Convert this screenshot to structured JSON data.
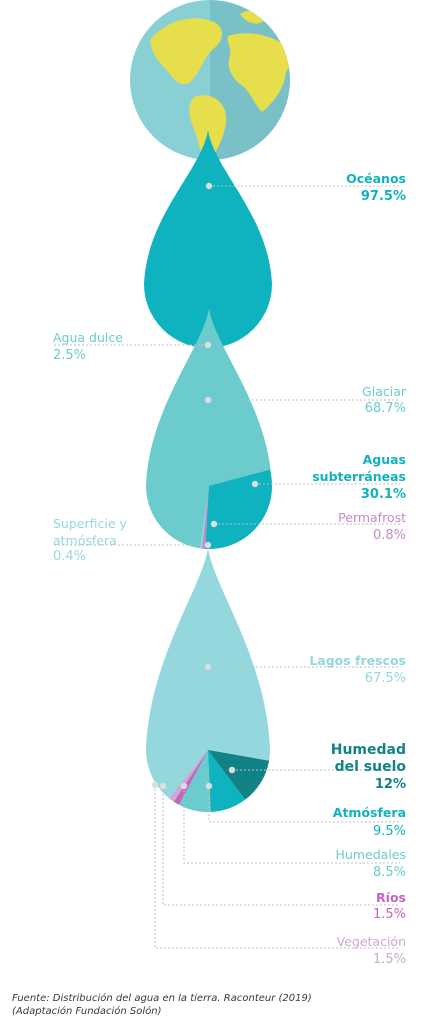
{
  "colors": {
    "ocean_drop": "#0fb2bf",
    "fresh_drop": "#6ccbcc",
    "lake_drop": "#94d8de",
    "groundwater": "#0fb2bf",
    "permafrost": "#c58ac9",
    "soil": "#128287",
    "atmosphere": "#0fb2bf",
    "wetlands": "#6ccbcc",
    "rivers": "#c266c2",
    "vegetation": "#d2a7d6",
    "leader": "#bfbfbf",
    "earth_water": "#89d0d5",
    "earth_land": "#e7de4b"
  },
  "chart_data": [
    {
      "type": "pie",
      "shape": "drop",
      "slices": [
        {
          "label": "Océanos",
          "value": 97.5,
          "value_text": "97.5%"
        },
        {
          "label": "Agua dulce",
          "value": 2.5,
          "value_text": "2.5%"
        }
      ]
    },
    {
      "type": "pie",
      "shape": "drop",
      "slices": [
        {
          "label": "Glaciar",
          "value": 68.7,
          "value_text": "68.7%"
        },
        {
          "label": "Aguas\nsubterráneas",
          "value": 30.1,
          "value_text": "30.1%"
        },
        {
          "label": "Permafrost",
          "value": 0.8,
          "value_text": "0.8%"
        },
        {
          "label": "Superficie y\natmósfera",
          "value": 0.4,
          "value_text": "0.4%"
        }
      ]
    },
    {
      "type": "pie",
      "shape": "drop",
      "slices": [
        {
          "label": "Lagos frescos",
          "value": 67.5,
          "value_text": "67.5%"
        },
        {
          "label": "Humedad\ndel suelo",
          "value": 12,
          "value_text": "12%"
        },
        {
          "label": "Atmósfera",
          "value": 9.5,
          "value_text": "9.5%"
        },
        {
          "label": "Humedales",
          "value": 8.5,
          "value_text": "8.5%"
        },
        {
          "label": "Ríos",
          "value": 1.5,
          "value_text": "1.5%"
        },
        {
          "label": "Vegetación",
          "value": 1.5,
          "value_text": "1.5%"
        }
      ]
    }
  ],
  "source": "Fuente: Distribución del agua en la tierra. Raconteur (2019)\n(Adaptación Fundación Solón)"
}
